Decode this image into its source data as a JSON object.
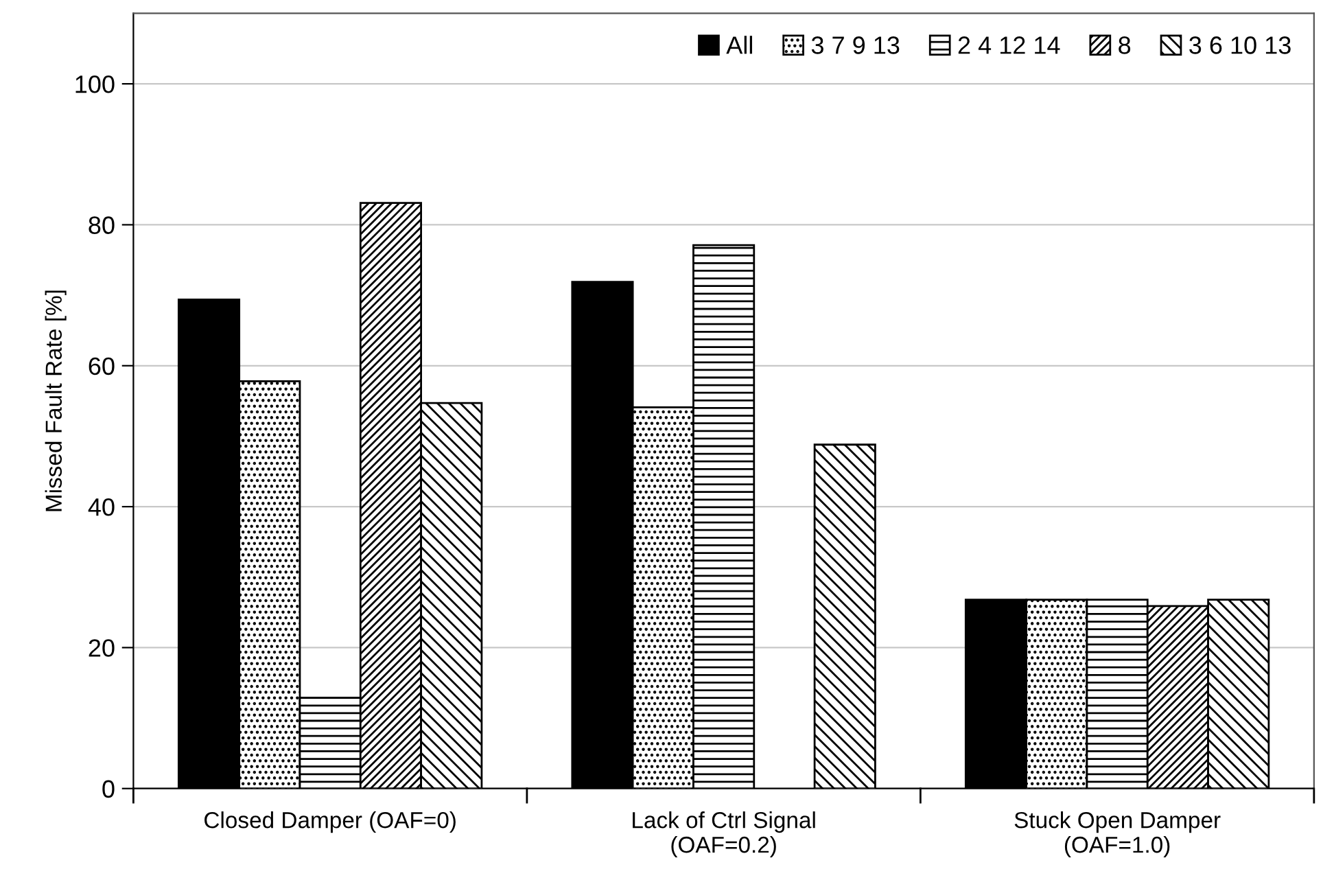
{
  "chart_data": {
    "type": "bar",
    "ylabel": "Missed Fault Rate [%]",
    "categories": [
      "Closed Damper (OAF=0)",
      "Lack of Ctrl Signal\n(OAF=0.2)",
      "Stuck Open Damper\n(OAF=1.0)"
    ],
    "series": [
      {
        "name": "All",
        "color": "#000000",
        "values": [
          69.4,
          71.9,
          26.8
        ]
      },
      {
        "name": "3 7 9 13",
        "color": "#000000",
        "values": [
          57.8,
          54.1,
          26.8
        ]
      },
      {
        "name": "2 4 12 14",
        "color": "#000000",
        "values": [
          12.9,
          77.1,
          26.8
        ]
      },
      {
        "name": "8",
        "color": "#000000",
        "values": [
          83.1,
          null,
          25.9
        ]
      },
      {
        "name": "3 6 10 13",
        "color": "#000000",
        "values": [
          54.7,
          48.8,
          26.8
        ]
      }
    ],
    "ylim": [
      0,
      110
    ],
    "yticks": [
      0,
      20,
      40,
      60,
      80,
      100
    ],
    "grid": "y",
    "legend": "top right"
  }
}
